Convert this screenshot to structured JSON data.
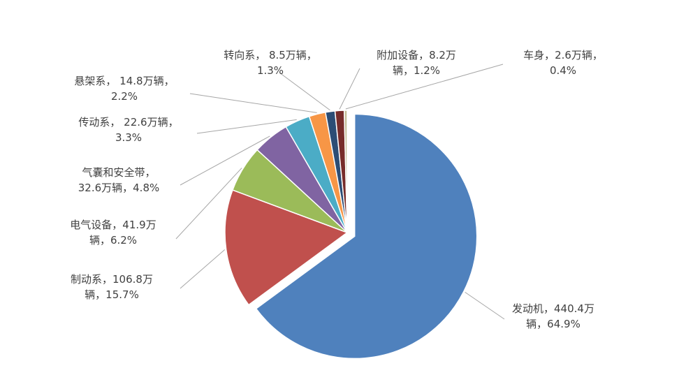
{
  "chart_data": {
    "type": "pie",
    "title": "",
    "legend": "none",
    "unit": "万辆",
    "slices": [
      {
        "name": "发动机",
        "value": 440.4,
        "percent": 64.9,
        "color": "#4f81bd",
        "label_lines": [
          "发动机，440.4万",
          "辆，64.9%"
        ]
      },
      {
        "name": "制动系",
        "value": 106.8,
        "percent": 15.7,
        "color": "#c0504d",
        "label_lines": [
          "制动系，106.8万",
          "辆，15.7%"
        ]
      },
      {
        "name": "电气设备",
        "value": 41.9,
        "percent": 6.2,
        "color": "#9bbb59",
        "label_lines": [
          "电气设备，41.9万",
          "辆，6.2%"
        ]
      },
      {
        "name": "气囊和安全带",
        "value": 32.6,
        "percent": 4.8,
        "color": "#8064a2",
        "label_lines": [
          "气囊和安全带，",
          "32.6万辆，4.8%"
        ]
      },
      {
        "name": "传动系",
        "value": 22.6,
        "percent": 3.3,
        "color": "#4bacc6",
        "label_lines": [
          "传动系， 22.6万辆，",
          "3.3%"
        ]
      },
      {
        "name": "悬架系",
        "value": 14.8,
        "percent": 2.2,
        "color": "#f79646",
        "label_lines": [
          "悬架系， 14.8万辆，",
          "2.2%"
        ]
      },
      {
        "name": "转向系",
        "value": 8.5,
        "percent": 1.3,
        "color": "#2c4d75",
        "label_lines": [
          "转向系， 8.5万辆，",
          "1.3%"
        ]
      },
      {
        "name": "附加设备",
        "value": 8.2,
        "percent": 1.2,
        "color": "#772c2a",
        "label_lines": [
          "附加设备，8.2万",
          "辆，1.2%"
        ]
      },
      {
        "name": "车身",
        "value": 2.6,
        "percent": 0.4,
        "color": "#c4bd97",
        "label_lines": [
          "车身，2.6万辆，",
          "0.4%"
        ]
      }
    ]
  }
}
